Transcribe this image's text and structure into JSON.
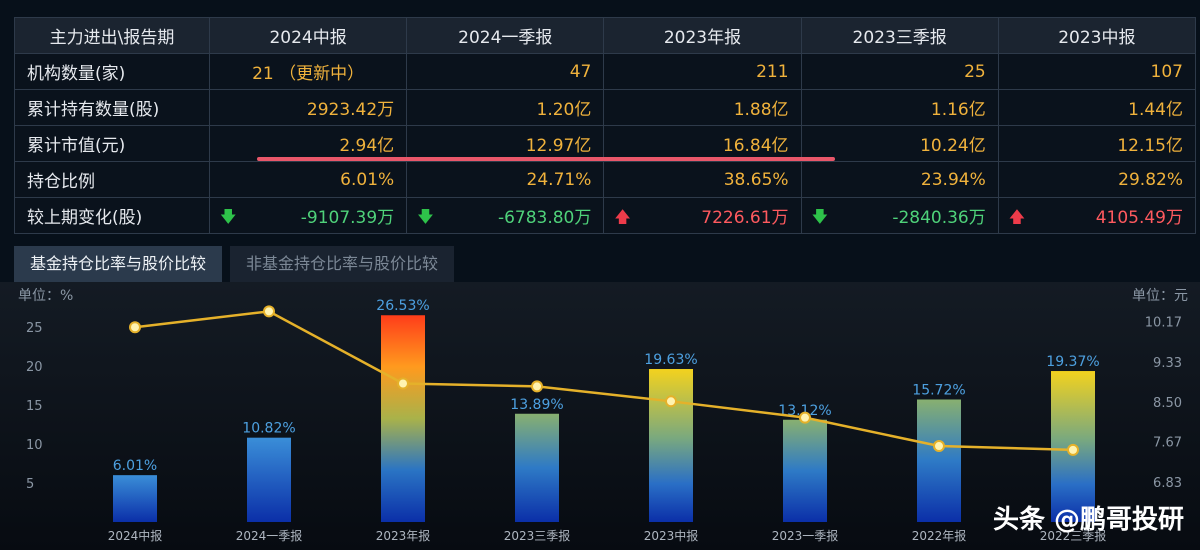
{
  "table": {
    "header": [
      "主力进出\\报告期",
      "2024中报",
      "2024一季报",
      "2023年报",
      "2023三季报",
      "2023中报"
    ],
    "rows": [
      {
        "label": "机构数量(家)",
        "cells": [
          "21 （更新中）",
          "47",
          "211",
          "25",
          "107"
        ]
      },
      {
        "label": "累计持有数量(股)",
        "cells": [
          "2923.42万",
          "1.20亿",
          "1.88亿",
          "1.16亿",
          "1.44亿"
        ]
      },
      {
        "label": "累计市值(元)",
        "cells": [
          "2.94亿",
          "12.97亿",
          "16.84亿",
          "10.24亿",
          "12.15亿"
        ]
      },
      {
        "label": "持仓比例",
        "cells": [
          "6.01%",
          "24.71%",
          "38.65%",
          "23.94%",
          "29.82%"
        ]
      },
      {
        "label": "较上期变化(股)",
        "cells": [
          "-9107.39万",
          "-6783.80万",
          "7226.61万",
          "-2840.36万",
          "4105.49万"
        ],
        "directions": [
          "down",
          "down",
          "up",
          "down",
          "up"
        ]
      }
    ]
  },
  "tabs": [
    "基金持仓比率与股价比较",
    "非基金持仓比率与股价比较"
  ],
  "chart_data": {
    "type": "bar",
    "categories": [
      "2024中报",
      "2024一季报",
      "2023年报",
      "2023三季报",
      "2023中报",
      "2023一季报",
      "2022年报",
      "2022三季报"
    ],
    "series": [
      {
        "values": [
          6.01,
          10.82,
          26.53,
          13.89,
          19.63,
          13.12,
          15.72,
          19.37
        ],
        "axis": "left",
        "kind": "bar"
      },
      {
        "values": [
          10.05,
          10.38,
          8.88,
          8.82,
          8.51,
          8.17,
          7.58,
          7.5
        ],
        "axis": "right",
        "kind": "line"
      }
    ],
    "bar_labels": [
      "6.01%",
      "10.82%",
      "26.53%",
      "13.89%",
      "19.63%",
      "13.12%",
      "15.72%",
      "19.37%"
    ],
    "left_axis": {
      "unit_label": "单位：%",
      "ticks": [
        "5",
        "10",
        "15",
        "20",
        "25"
      ],
      "ylim": [
        0,
        29
      ]
    },
    "right_axis": {
      "unit_label": "单位：元",
      "ticks": [
        "6.83",
        "7.67",
        "8.50",
        "9.33",
        "10.17"
      ],
      "ylim": [
        6.0,
        10.7
      ]
    },
    "colors": {
      "line": "#e5b12a",
      "label": "#4da0e0",
      "axis_text": "#8a96a4"
    }
  },
  "watermark": "头条 @鹏哥投研"
}
